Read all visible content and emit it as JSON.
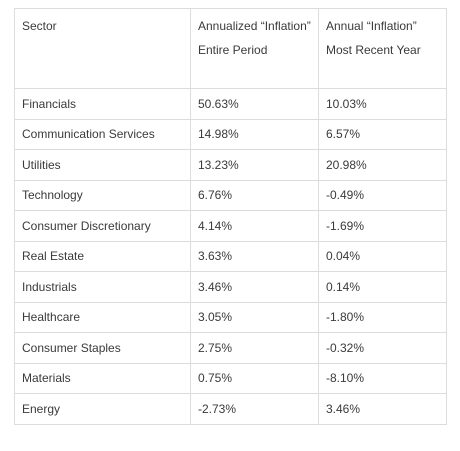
{
  "table": {
    "header": [
      "Sector",
      "Annualized “Inflation” Entire Period",
      "Annual “Inflation” Most Recent Year"
    ],
    "rows": [
      [
        "Financials",
        "50.63%",
        "10.03%"
      ],
      [
        "Communication Services",
        "14.98%",
        "6.57%"
      ],
      [
        "Utilities",
        "13.23%",
        "20.98%"
      ],
      [
        "Technology",
        "6.76%",
        "-0.49%"
      ],
      [
        "Consumer Discretionary",
        "4.14%",
        "-1.69%"
      ],
      [
        "Real Estate",
        "3.63%",
        "0.04%"
      ],
      [
        "Industrials",
        "3.46%",
        "0.14%"
      ],
      [
        "Healthcare",
        "3.05%",
        "-1.80%"
      ],
      [
        "Consumer Staples",
        "2.75%",
        "-0.32%"
      ],
      [
        "Materials",
        "0.75%",
        "-8.10%"
      ],
      [
        "Energy",
        "-2.73%",
        "3.46%"
      ]
    ]
  }
}
